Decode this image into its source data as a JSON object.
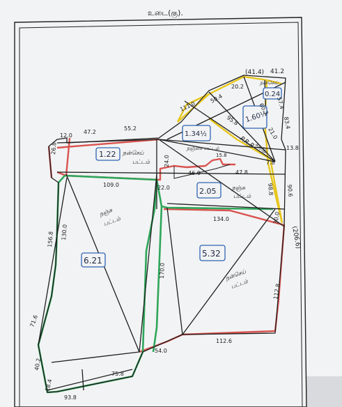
{
  "header_mark": "உடை(கு).",
  "areas": {
    "a1_22": "1.22",
    "a1_34": "1.34½",
    "a1_60": "1.60½",
    "a0_24": "0.24",
    "a2_05": "2.05",
    "a6_21": "6.21",
    "a5_32": "5.32"
  },
  "land_labels": {
    "l1": "நன்செய்",
    "l1b": "பட்டம்",
    "l2": "நஞ்சை பட்டம்",
    "l3": "P.R.P",
    "l3b": "கசுந்து",
    "l4": "நஞ்சு",
    "l4b": "பட்டம்",
    "l5": "நஞ்சு",
    "l5b": "பட்டம்",
    "l6": "நன்செய்",
    "l6b": "பட்டம்",
    "l7": "நன்செய்"
  },
  "measurements": {
    "m41_4": "(41.4)",
    "m41_2": "41.2",
    "m20_2": "20.2",
    "m111_0": "111.0",
    "m50_4": "50.4",
    "m60_3": "60.3",
    "m95_8": "95.8",
    "m21_0": "21.0",
    "m57_4": "57.4",
    "m83_4": "83.4",
    "m13_8": "13.8",
    "m7_8": "7.8",
    "m90_6": "90.6",
    "m98_8": "98.8",
    "m12_0": "12.0",
    "m47_2": "47.2",
    "m55_2": "55.2",
    "m26_8": "26.8",
    "m109_0": "109.0",
    "m22_0": "22.0",
    "m24_0": "24.0",
    "m46_0": "46.0",
    "m47_8": "47.8",
    "m15_8": "15.8",
    "m134_0": "134.0",
    "m30_0": "30.0",
    "m156_8": "156.8",
    "m130_0": "130.0",
    "m170_0": "170.0",
    "m112_8": "112.8",
    "m71_6": "71.6",
    "m54_0": "54.0",
    "m112_6": "112.6",
    "m75_8": "75.8",
    "m40_2": "40.2",
    "m18_4": "18.4",
    "m93_8": "93.8",
    "m206_6": "(206.6)"
  },
  "colors": {
    "paper": "#f2f3f4",
    "pencil": "#1e1e1e",
    "red": "#d9534f",
    "green": "#2ea65a",
    "yellow": "#e7c61c",
    "blue": "#2f64b5"
  }
}
